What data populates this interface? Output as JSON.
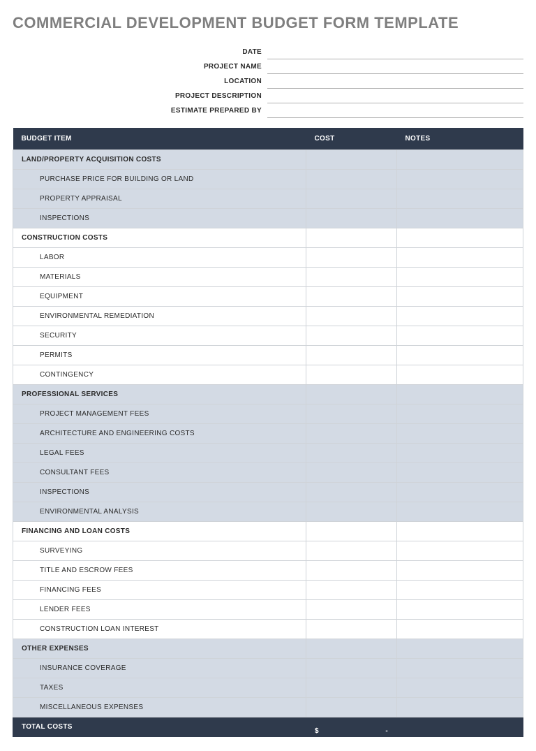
{
  "title": "COMMERCIAL DEVELOPMENT BUDGET FORM TEMPLATE",
  "colors": {
    "title_text": "#7f7f7f",
    "header_bg": "#2f3a4c",
    "header_text": "#ffffff",
    "shaded_row": "#d3dae4",
    "white_row": "#ffffff",
    "border": "#cfd3d8",
    "field_underline": "#b0b0b0"
  },
  "header_fields": [
    {
      "label": "DATE"
    },
    {
      "label": "PROJECT NAME"
    },
    {
      "label": "LOCATION"
    },
    {
      "label": "PROJECT DESCRIPTION"
    },
    {
      "label": "ESTIMATE PREPARED BY"
    }
  ],
  "columns": [
    "BUDGET ITEM",
    "COST",
    "NOTES"
  ],
  "sections": [
    {
      "name": "LAND/PROPERTY ACQUISITION COSTS",
      "shaded": true,
      "items": [
        "PURCHASE PRICE FOR BUILDING OR LAND",
        "PROPERTY APPRAISAL",
        "INSPECTIONS"
      ]
    },
    {
      "name": "CONSTRUCTION COSTS",
      "shaded": false,
      "items": [
        "LABOR",
        "MATERIALS",
        "EQUIPMENT",
        "ENVIRONMENTAL REMEDIATION",
        "SECURITY",
        "PERMITS",
        "CONTINGENCY"
      ]
    },
    {
      "name": "PROFESSIONAL SERVICES",
      "shaded": true,
      "items": [
        "PROJECT MANAGEMENT FEES",
        "ARCHITECTURE AND ENGINEERING COSTS",
        "LEGAL FEES",
        "CONSULTANT FEES",
        "INSPECTIONS",
        "ENVIRONMENTAL ANALYSIS"
      ]
    },
    {
      "name": "FINANCING AND LOAN COSTS",
      "shaded": false,
      "items": [
        "SURVEYING",
        "TITLE AND ESCROW FEES",
        "FINANCING FEES",
        "LENDER FEES",
        "CONSTRUCTION LOAN INTEREST"
      ]
    },
    {
      "name": "OTHER EXPENSES",
      "shaded": true,
      "items": [
        "INSURANCE COVERAGE",
        "TAXES",
        "MISCELLANEOUS EXPENSES"
      ]
    }
  ],
  "total": {
    "label": "TOTAL COSTS",
    "currency": "$",
    "value": "-"
  }
}
